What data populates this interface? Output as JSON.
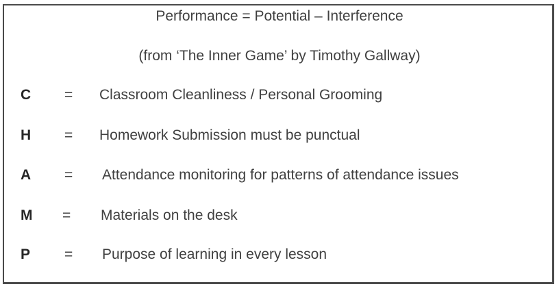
{
  "title": "Performance = Potential – Interference",
  "source": "(from ‘The Inner Game’ by Timothy Gallway)",
  "rows": [
    {
      "letter": "C",
      "equals": "=",
      "definition": "Classroom Cleanliness / Personal Grooming"
    },
    {
      "letter": "H",
      "equals": "=",
      "definition": "Homework Submission must be punctual"
    },
    {
      "letter": "A",
      "equals": "=",
      "definition": "Attendance monitoring for patterns of attendance issues"
    },
    {
      "letter": "M",
      "equals": "=",
      "definition": "Materials on the desk"
    },
    {
      "letter": "P",
      "equals": "=",
      "definition": "Purpose of learning in every lesson"
    }
  ]
}
